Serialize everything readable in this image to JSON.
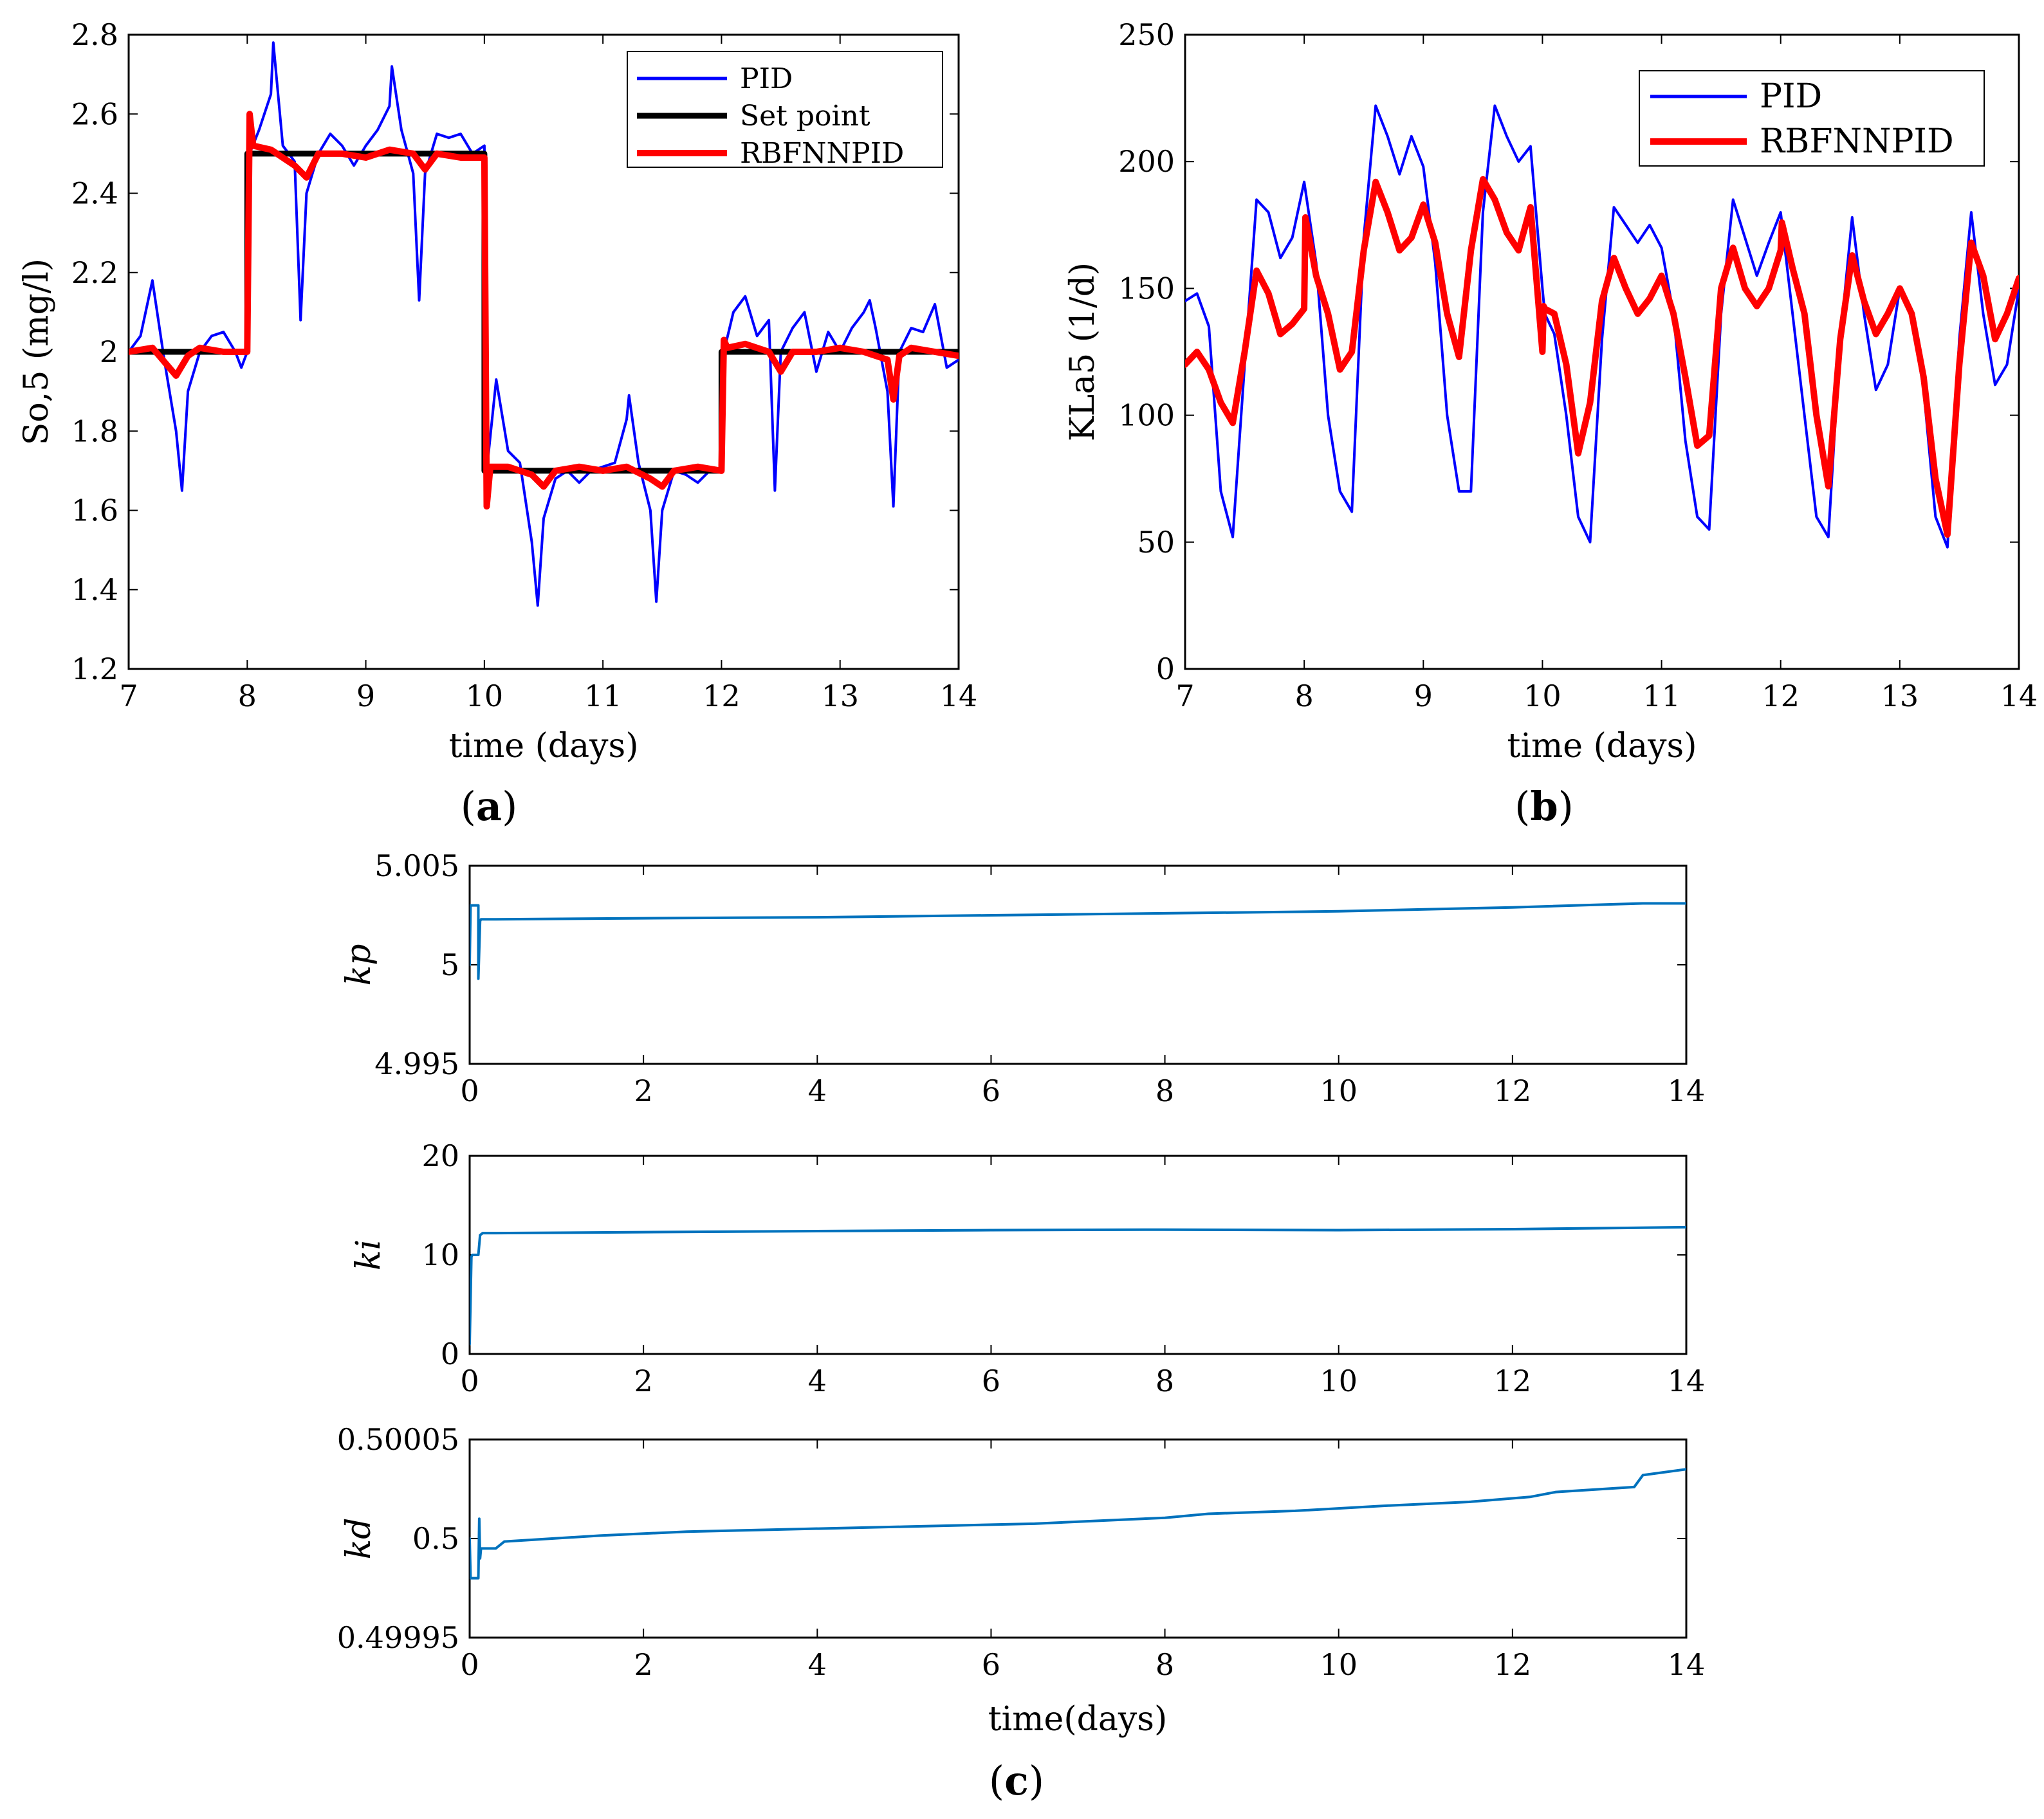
{
  "chart_data": [
    {
      "id": "a",
      "type": "line",
      "panel_label": "a",
      "xlabel": "time (days)",
      "ylabel": "So,5 (mg/l)",
      "xlim": [
        7,
        14
      ],
      "ylim": [
        1.2,
        2.8
      ],
      "xticks": [
        7,
        8,
        9,
        10,
        11,
        12,
        13,
        14
      ],
      "yticks": [
        1.2,
        1.4,
        1.6,
        1.8,
        2,
        2.2,
        2.4,
        2.6,
        2.8
      ],
      "ytick_labels": [
        "1.2",
        "1.4",
        "1.6",
        "1.8",
        "2",
        "2.2",
        "2.4",
        "2.6",
        "2.8"
      ],
      "legend_position": "top-right",
      "series": [
        {
          "name": "PID",
          "color": "#0000ff",
          "x": [
            7,
            7.1,
            7.2,
            7.3,
            7.4,
            7.45,
            7.5,
            7.6,
            7.7,
            7.8,
            7.9,
            7.95,
            8.0,
            8.02,
            8.1,
            8.2,
            8.22,
            8.3,
            8.4,
            8.45,
            8.5,
            8.6,
            8.7,
            8.8,
            8.9,
            9.0,
            9.1,
            9.2,
            9.22,
            9.3,
            9.4,
            9.45,
            9.5,
            9.6,
            9.7,
            9.8,
            9.9,
            10.0,
            10.02,
            10.1,
            10.2,
            10.3,
            10.4,
            10.45,
            10.5,
            10.6,
            10.7,
            10.8,
            10.9,
            11.0,
            11.1,
            11.2,
            11.22,
            11.3,
            11.4,
            11.45,
            11.5,
            11.6,
            11.7,
            11.8,
            11.9,
            12.0,
            12.02,
            12.1,
            12.2,
            12.3,
            12.4,
            12.45,
            12.5,
            12.6,
            12.7,
            12.8,
            12.9,
            13.0,
            13.1,
            13.2,
            13.25,
            13.3,
            13.4,
            13.45,
            13.5,
            13.6,
            13.7,
            13.8,
            13.9,
            14.0
          ],
          "y": [
            2.0,
            2.04,
            2.18,
            1.98,
            1.8,
            1.65,
            1.9,
            2.0,
            2.04,
            2.05,
            2.0,
            1.96,
            2.0,
            2.5,
            2.56,
            2.65,
            2.78,
            2.52,
            2.48,
            2.08,
            2.4,
            2.5,
            2.55,
            2.52,
            2.47,
            2.52,
            2.56,
            2.62,
            2.72,
            2.56,
            2.45,
            2.13,
            2.45,
            2.55,
            2.54,
            2.55,
            2.5,
            2.52,
            1.7,
            1.93,
            1.75,
            1.72,
            1.52,
            1.36,
            1.58,
            1.68,
            1.7,
            1.67,
            1.7,
            1.71,
            1.72,
            1.83,
            1.89,
            1.72,
            1.6,
            1.37,
            1.6,
            1.7,
            1.69,
            1.67,
            1.7,
            1.7,
            2.0,
            2.1,
            2.14,
            2.04,
            2.08,
            1.65,
            2.0,
            2.06,
            2.1,
            1.95,
            2.05,
            2.0,
            2.06,
            2.1,
            2.13,
            2.06,
            1.9,
            1.61,
            2.0,
            2.06,
            2.05,
            2.12,
            1.96,
            1.98
          ]
        },
        {
          "name": "Set point",
          "color": "#000000",
          "x": [
            7,
            8,
            8,
            10,
            10,
            12,
            12,
            14
          ],
          "y": [
            2.0,
            2.0,
            2.5,
            2.5,
            1.7,
            1.7,
            2.0,
            2.0
          ]
        },
        {
          "name": "RBFNNPID",
          "color": "#ff0000",
          "x": [
            7,
            7.2,
            7.4,
            7.5,
            7.6,
            7.8,
            8.0,
            8.02,
            8.05,
            8.2,
            8.4,
            8.5,
            8.6,
            8.8,
            9.0,
            9.2,
            9.4,
            9.5,
            9.6,
            9.8,
            10.0,
            10.02,
            10.05,
            10.2,
            10.4,
            10.5,
            10.6,
            10.8,
            11.0,
            11.2,
            11.4,
            11.5,
            11.6,
            11.8,
            12.0,
            12.02,
            12.05,
            12.2,
            12.4,
            12.5,
            12.6,
            12.8,
            13.0,
            13.2,
            13.4,
            13.45,
            13.5,
            13.6,
            13.8,
            14.0
          ],
          "y": [
            2.0,
            2.01,
            1.94,
            1.99,
            2.01,
            2.0,
            2.0,
            2.6,
            2.52,
            2.51,
            2.47,
            2.44,
            2.5,
            2.5,
            2.49,
            2.51,
            2.5,
            2.46,
            2.5,
            2.49,
            2.49,
            1.61,
            1.71,
            1.71,
            1.69,
            1.66,
            1.7,
            1.71,
            1.7,
            1.71,
            1.68,
            1.66,
            1.7,
            1.71,
            1.7,
            2.03,
            2.01,
            2.02,
            2.0,
            1.95,
            2.0,
            2.0,
            2.01,
            2.0,
            1.98,
            1.88,
            1.99,
            2.01,
            2.0,
            1.99
          ]
        }
      ]
    },
    {
      "id": "b",
      "type": "line",
      "panel_label": "b",
      "xlabel": "time (days)",
      "ylabel": "KLa5 (1/d)",
      "xlim": [
        7,
        14
      ],
      "ylim": [
        0,
        250
      ],
      "xticks": [
        7,
        8,
        9,
        10,
        11,
        12,
        13,
        14
      ],
      "yticks": [
        0,
        50,
        100,
        150,
        200,
        250
      ],
      "ytick_labels": [
        "0",
        "50",
        "100",
        "150",
        "200",
        "250"
      ],
      "legend_position": "top-right",
      "series": [
        {
          "name": "PID",
          "color": "#0000ff",
          "x": [
            7,
            7.1,
            7.2,
            7.3,
            7.4,
            7.5,
            7.6,
            7.7,
            7.8,
            7.9,
            8.0,
            8.1,
            8.2,
            8.3,
            8.4,
            8.5,
            8.6,
            8.7,
            8.8,
            8.9,
            9.0,
            9.1,
            9.2,
            9.3,
            9.4,
            9.5,
            9.6,
            9.7,
            9.8,
            9.9,
            10.0,
            10.02,
            10.1,
            10.2,
            10.3,
            10.4,
            10.5,
            10.6,
            10.7,
            10.8,
            10.9,
            11.0,
            11.1,
            11.2,
            11.3,
            11.4,
            11.5,
            11.6,
            11.7,
            11.8,
            11.9,
            12.0,
            12.1,
            12.2,
            12.3,
            12.4,
            12.5,
            12.6,
            12.7,
            12.8,
            12.9,
            13.0,
            13.1,
            13.2,
            13.3,
            13.4,
            13.5,
            13.6,
            13.7,
            13.8,
            13.9,
            14.0
          ],
          "y": [
            145,
            148,
            135,
            70,
            52,
            120,
            185,
            180,
            162,
            170,
            192,
            160,
            100,
            70,
            62,
            170,
            222,
            210,
            195,
            210,
            198,
            160,
            100,
            70,
            70,
            180,
            222,
            210,
            200,
            206,
            150,
            140,
            132,
            100,
            60,
            50,
            130,
            182,
            175,
            168,
            175,
            166,
            140,
            90,
            60,
            55,
            140,
            185,
            170,
            155,
            168,
            180,
            140,
            100,
            60,
            52,
            130,
            178,
            140,
            110,
            120,
            150,
            140,
            110,
            60,
            48,
            130,
            180,
            140,
            112,
            120,
            150
          ]
        },
        {
          "name": "RBFNNPID",
          "color": "#ff0000",
          "x": [
            7,
            7.1,
            7.2,
            7.3,
            7.4,
            7.5,
            7.6,
            7.7,
            7.8,
            7.9,
            8.0,
            8.01,
            8.1,
            8.2,
            8.3,
            8.4,
            8.5,
            8.6,
            8.7,
            8.8,
            8.9,
            9.0,
            9.1,
            9.2,
            9.3,
            9.4,
            9.5,
            9.6,
            9.7,
            9.8,
            9.9,
            10.0,
            10.01,
            10.02,
            10.1,
            10.2,
            10.3,
            10.4,
            10.5,
            10.6,
            10.7,
            10.8,
            10.9,
            11.0,
            11.1,
            11.2,
            11.3,
            11.4,
            11.5,
            11.6,
            11.7,
            11.8,
            11.9,
            12.0,
            12.01,
            12.1,
            12.2,
            12.3,
            12.4,
            12.5,
            12.6,
            12.7,
            12.8,
            12.9,
            13.0,
            13.1,
            13.2,
            13.3,
            13.4,
            13.5,
            13.6,
            13.7,
            13.8,
            13.9,
            14.0
          ],
          "y": [
            120,
            125,
            118,
            105,
            97,
            125,
            157,
            148,
            132,
            136,
            142,
            178,
            155,
            140,
            118,
            125,
            165,
            192,
            180,
            165,
            170,
            183,
            168,
            140,
            123,
            165,
            193,
            185,
            172,
            165,
            182,
            125,
            143,
            142,
            140,
            120,
            85,
            105,
            145,
            162,
            150,
            140,
            146,
            155,
            140,
            115,
            88,
            92,
            150,
            166,
            150,
            143,
            150,
            165,
            176,
            158,
            140,
            100,
            72,
            130,
            163,
            145,
            132,
            140,
            150,
            140,
            115,
            75,
            53,
            120,
            168,
            155,
            130,
            140,
            154
          ]
        }
      ]
    },
    {
      "id": "c",
      "type": "line",
      "panel_label": "c",
      "xlabel": "time(days)",
      "subplots": [
        {
          "ylabel": "kp",
          "xlim": [
            0,
            14
          ],
          "ylim": [
            4.995,
            5.005
          ],
          "xticks": [
            0,
            2,
            4,
            6,
            8,
            10,
            12,
            14
          ],
          "yticks": [
            4.995,
            5,
            5.005
          ],
          "ytick_labels": [
            "4.995",
            "5",
            "5.005"
          ],
          "series": [
            {
              "name": "kp",
              "color": "#0072bd",
              "x": [
                0,
                0.01,
                0.1,
                0.1,
                0.12,
                0.13,
                0.15,
                0.3,
                2,
                4,
                6,
                8,
                10,
                12,
                13.5,
                14
              ],
              "y": [
                5.0,
                5.003,
                5.003,
                4.9993,
                5.0022,
                5.0023,
                5.0023,
                5.0023,
                5.00235,
                5.0024,
                5.0025,
                5.0026,
                5.0027,
                5.0029,
                5.0031,
                5.0031
              ]
            }
          ]
        },
        {
          "ylabel": "ki",
          "xlim": [
            0,
            14
          ],
          "ylim": [
            0,
            20
          ],
          "xticks": [
            0,
            2,
            4,
            6,
            8,
            10,
            12,
            14
          ],
          "yticks": [
            0,
            10,
            20
          ],
          "ytick_labels": [
            "0",
            "10",
            "20"
          ],
          "series": [
            {
              "name": "ki",
              "color": "#0072bd",
              "x": [
                0,
                0.02,
                0.03,
                0.1,
                0.12,
                0.15,
                0.3,
                2,
                4,
                6,
                8,
                10,
                12,
                14
              ],
              "y": [
                1,
                9.8,
                10.0,
                10.0,
                12.0,
                12.2,
                12.2,
                12.3,
                12.4,
                12.5,
                12.55,
                12.5,
                12.6,
                12.8
              ]
            }
          ]
        },
        {
          "ylabel": "kd",
          "xlim": [
            0,
            14
          ],
          "ylim": [
            0.49995,
            0.50005
          ],
          "xticks": [
            0,
            2,
            4,
            6,
            8,
            10,
            12,
            14
          ],
          "yticks": [
            0.49995,
            0.5,
            0.50005
          ],
          "ytick_labels": [
            "0.49995",
            "0.5",
            "0.50005"
          ],
          "series": [
            {
              "name": "kd",
              "color": "#0072bd",
              "x": [
                0,
                0.01,
                0.1,
                0.11,
                0.12,
                0.13,
                0.3,
                0.4,
                1.5,
                2.5,
                3.5,
                5,
                6.5,
                7.5,
                8,
                8.5,
                9.5,
                10.5,
                11.5,
                12.2,
                12.5,
                13.4,
                13.5,
                14
              ],
              "y": [
                0.5,
                0.49998,
                0.49998,
                0.50001,
                0.49999,
                0.499995,
                0.499995,
                0.4999985,
                0.5000015,
                0.5000035,
                0.5000045,
                0.500006,
                0.5000075,
                0.5000095,
                0.5000105,
                0.5000125,
                0.500014,
                0.5000165,
                0.5000185,
                0.500021,
                0.5000235,
                0.500026,
                0.500032,
                0.500035
              ]
            }
          ]
        }
      ]
    }
  ]
}
